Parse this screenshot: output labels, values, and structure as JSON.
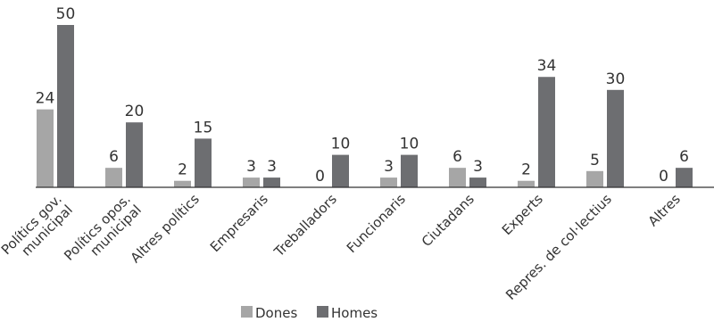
{
  "chart_data": {
    "type": "bar",
    "title": "",
    "xlabel": "",
    "ylabel": "",
    "grid": false,
    "legend_position": "bottom",
    "ylim": [
      0,
      50
    ],
    "categories": [
      [
        "Polítics gov.",
        "municipal"
      ],
      [
        "Polítics opos.",
        "municipal"
      ],
      [
        "Altres polítics"
      ],
      [
        "Empresaris"
      ],
      [
        "Treballadors"
      ],
      [
        "Funcionaris"
      ],
      [
        "Ciutadans"
      ],
      [
        "Experts"
      ],
      [
        "Repres. de col·lectius"
      ],
      [
        "Altres"
      ]
    ],
    "series": [
      {
        "name": "Dones",
        "color": "#a6a6a6",
        "values": [
          24,
          6,
          2,
          3,
          0,
          3,
          6,
          2,
          5,
          0
        ]
      },
      {
        "name": "Homes",
        "color": "#6d6e71",
        "values": [
          50,
          20,
          15,
          3,
          10,
          10,
          3,
          34,
          30,
          6
        ]
      }
    ]
  }
}
